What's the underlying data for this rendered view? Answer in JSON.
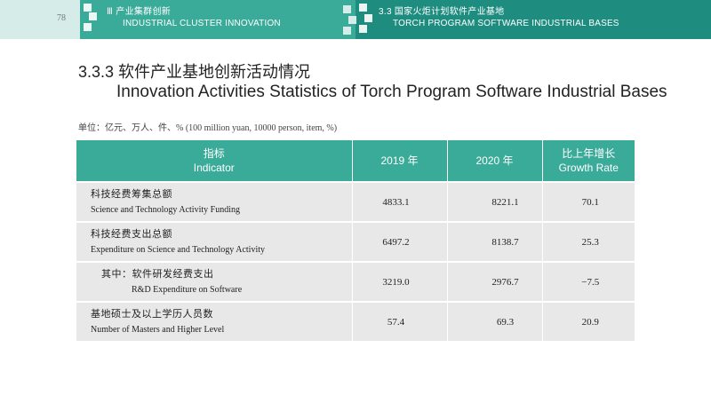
{
  "header": {
    "page_number": "78",
    "left_section": {
      "line1": "Ⅲ 产业集群创新",
      "line2": "INDUSTRIAL CLUSTER INNOVATION"
    },
    "right_section": {
      "line1": "3.3 国家火炬计划软件产业基地",
      "line2": "TORCH PROGRAM SOFTWARE INDUSTRIAL BASES"
    },
    "colors": {
      "band_light": "#d6ece9",
      "band_mid": "#3aaa99",
      "band_dark": "#1f8c80"
    }
  },
  "title": {
    "cn": "3.3.3 软件产业基地创新活动情况",
    "en": "Innovation Activities Statistics of Torch Program Software Industrial Bases"
  },
  "units": "单位：亿元、万人、件、% (100 million yuan, 10000 person, item, %)",
  "table": {
    "header_color": "#3aaa99",
    "columns": [
      {
        "cn": "指标",
        "en": "Indicator"
      },
      {
        "cn": "2019 年",
        "en": ""
      },
      {
        "cn": "2020 年",
        "en": ""
      },
      {
        "cn": "比上年增长",
        "en": "Growth Rate"
      }
    ],
    "rows": [
      {
        "cn": "科技经费筹集总额",
        "en": "Science and Technology Activity Funding",
        "v2019": "4833.1",
        "v2020": "8221.1",
        "growth": "70.1"
      },
      {
        "cn": "科技经费支出总额",
        "en": "Expenditure on Science and Technology Activity",
        "v2019": "6497.2",
        "v2020": "8138.7",
        "growth": "25.3"
      },
      {
        "cn": "其中：软件研发经费支出",
        "en": "R&D Expenditure on Software",
        "v2019": "3219.0",
        "v2020": "2976.7",
        "growth": "−7.5"
      },
      {
        "cn": "基地硕士及以上学历人员数",
        "en": "Number of Masters and Higher Level",
        "v2019": "57.4",
        "v2020": "69.3",
        "growth": "20.9"
      }
    ]
  }
}
